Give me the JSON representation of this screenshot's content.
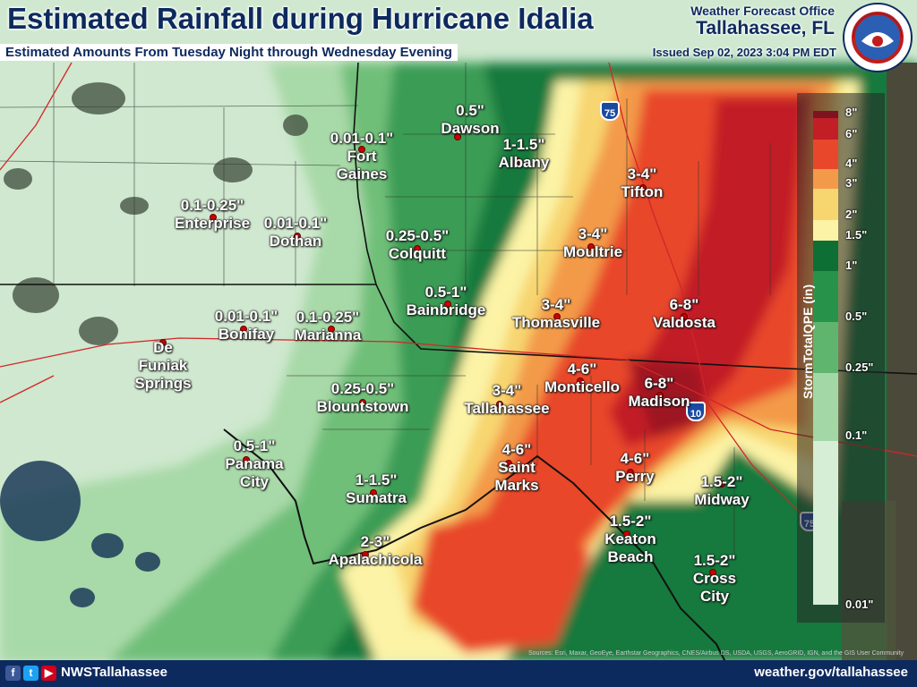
{
  "header": {
    "title": "Estimated Rainfall during Hurricane Idalia",
    "subtitle": "Estimated Amounts From Tuesday Night through Wednesday Evening",
    "office_line1": "Weather Forecast Office",
    "office_line2": "Tallahassee, FL",
    "issued": "Issued Sep 02, 2023 3:04 PM EDT",
    "logo_text": "NATIONAL WEATHER SERVICE"
  },
  "legend": {
    "title": "StormTotalQPE (in)",
    "levels": [
      {
        "label": "8\"",
        "color": "#7d1420"
      },
      {
        "label": "6\"",
        "color": "#c21e26"
      },
      {
        "label": "4\"",
        "color": "#e8472c"
      },
      {
        "label": "3\"",
        "color": "#f39a4a"
      },
      {
        "label": "2\"",
        "color": "#f7d56f"
      },
      {
        "label": "1.5\"",
        "color": "#fcf3a6"
      },
      {
        "label": "1\"",
        "color": "#0e6f35"
      },
      {
        "label": "0.5\"",
        "color": "#27934a"
      },
      {
        "label": "0.25\"",
        "color": "#5fb56e"
      },
      {
        "label": "0.1\"",
        "color": "#a3d8a6"
      },
      {
        "label": "0.01\"",
        "color": "#d6eed6"
      }
    ]
  },
  "locations": [
    {
      "amount": "0.5\"",
      "name": "Dawson"
    },
    {
      "amount": "0.01-0.1\"",
      "name": "Fort\nGaines"
    },
    {
      "amount": "1-1.5\"",
      "name": "Albany"
    },
    {
      "amount": "3-4\"",
      "name": "Tifton"
    },
    {
      "amount": "0.1-0.25\"",
      "name": "Enterprise"
    },
    {
      "amount": "0.01-0.1\"",
      "name": "Dothan"
    },
    {
      "amount": "0.25-0.5\"",
      "name": "Colquitt"
    },
    {
      "amount": "3-4\"",
      "name": "Moultrie"
    },
    {
      "amount": "0.5-1\"",
      "name": "Bainbridge"
    },
    {
      "amount": "3-4\"",
      "name": "Thomasville"
    },
    {
      "amount": "6-8\"",
      "name": "Valdosta"
    },
    {
      "amount": "0.01-0.1\"",
      "name": "Bonifay"
    },
    {
      "amount": "0.1-0.25\"",
      "name": "Marianna"
    },
    {
      "amount": "",
      "name": "De\nFuniak\nSprings"
    },
    {
      "amount": "4-6\"",
      "name": "Monticello"
    },
    {
      "amount": "6-8\"",
      "name": "Madison"
    },
    {
      "amount": "3-4\"",
      "name": "Tallahassee"
    },
    {
      "amount": "0.25-0.5\"",
      "name": "Blountstown"
    },
    {
      "amount": "0.5-1\"",
      "name": "Panama\nCity"
    },
    {
      "amount": "4-6\"",
      "name": "Saint\nMarks"
    },
    {
      "amount": "4-6\"",
      "name": "Perry"
    },
    {
      "amount": "1.5-2\"",
      "name": "Midway"
    },
    {
      "amount": "1-1.5\"",
      "name": "Sumatra"
    },
    {
      "amount": "1.5-2\"",
      "name": "Keaton\nBeach"
    },
    {
      "amount": "2-3\"",
      "name": "Apalachicola"
    },
    {
      "amount": "1.5-2\"",
      "name": "Cross\nCity"
    }
  ],
  "interstate_shields": [
    "75",
    "10",
    "75"
  ],
  "footer": {
    "handle": "NWSTallahassee",
    "website": "weather.gov/tallahassee",
    "social_icons": [
      "facebook-icon",
      "twitter-icon",
      "youtube-icon"
    ],
    "attribution": "Sources: Esri, Maxar, GeoEye, Earthstar Geographics, CNES/Airbus DS, USDA, USGS, AeroGRID, IGN, and the GIS User Community"
  }
}
